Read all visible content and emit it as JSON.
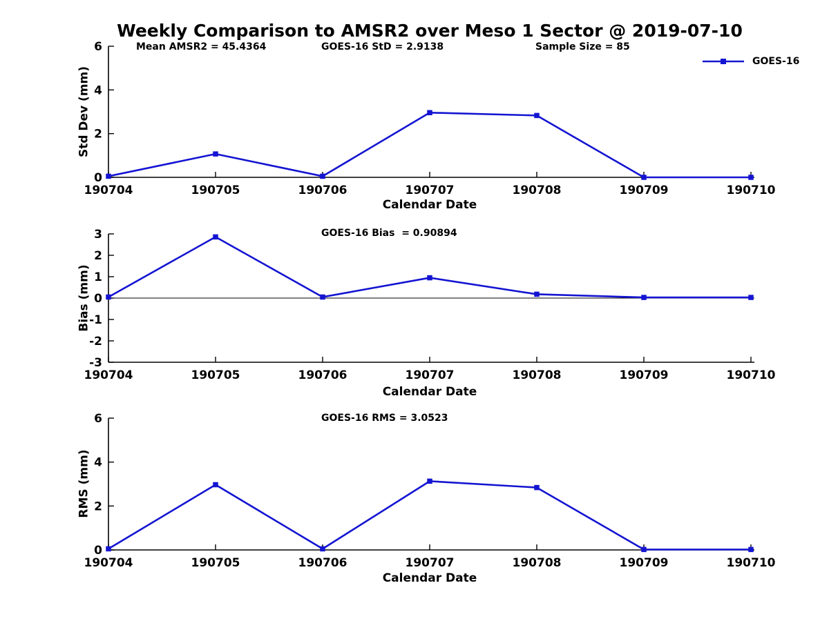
{
  "title": "Weekly Comparison to AMSR2 over Meso 1 Sector @ 2019-07-10",
  "legend": {
    "label": "GOES-16",
    "color": "#1414d2"
  },
  "chart_data": [
    {
      "type": "line",
      "panel": "std_dev",
      "annotations": [
        "Mean AMSR2 = 45.4364",
        "GOES-16 StD = 2.9138",
        "Sample Size = 85"
      ],
      "xlabel": "Calendar Date",
      "ylabel": "Std Dev (mm)",
      "categories": [
        "190704",
        "190705",
        "190706",
        "190707",
        "190708",
        "190709",
        "190710"
      ],
      "series": [
        {
          "name": "GOES-16",
          "color": "#1414d2",
          "marker": "square",
          "values": [
            0.05,
            1.07,
            0.05,
            2.96,
            2.83,
            0.0,
            0.0
          ]
        }
      ],
      "ylim": [
        0,
        6
      ],
      "yticks": [
        0,
        2,
        4,
        6
      ],
      "grid": false,
      "legend_position": "top-right"
    },
    {
      "type": "line",
      "panel": "bias",
      "annotations": [
        "GOES-16 Bias  = 0.90894"
      ],
      "xlabel": "Calendar Date",
      "ylabel": "Bias (mm)",
      "categories": [
        "190704",
        "190705",
        "190706",
        "190707",
        "190708",
        "190709",
        "190710"
      ],
      "series": [
        {
          "name": "GOES-16",
          "color": "#1414d2",
          "marker": "square",
          "values": [
            0.05,
            2.86,
            0.05,
            0.95,
            0.18,
            0.03,
            0.03
          ]
        }
      ],
      "ylim": [
        -3,
        3
      ],
      "yticks": [
        -3,
        -2,
        -1,
        0,
        1,
        2,
        3
      ],
      "grid": false,
      "legend_position": "none"
    },
    {
      "type": "line",
      "panel": "rms",
      "annotations": [
        "GOES-16 RMS = 3.0523"
      ],
      "xlabel": "Calendar Date",
      "ylabel": "RMS (mm)",
      "categories": [
        "190704",
        "190705",
        "190706",
        "190707",
        "190708",
        "190709",
        "190710"
      ],
      "series": [
        {
          "name": "GOES-16",
          "color": "#1414d2",
          "marker": "square",
          "values": [
            0.05,
            2.97,
            0.05,
            3.13,
            2.84,
            0.02,
            0.02
          ]
        }
      ],
      "ylim": [
        0,
        6
      ],
      "yticks": [
        0,
        2,
        4,
        6
      ],
      "grid": false,
      "legend_position": "none"
    }
  ]
}
